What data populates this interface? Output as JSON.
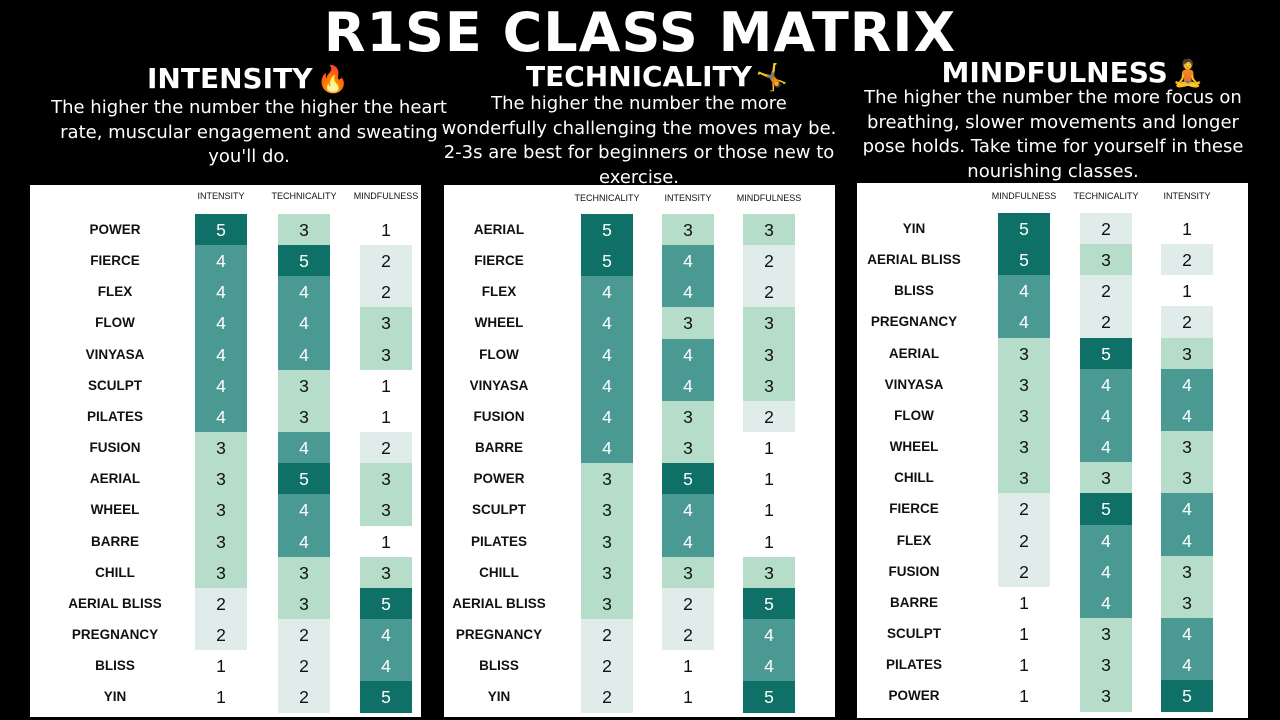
{
  "title": "R1SE CLASS MATRIX",
  "colors": {
    "5": "#0f7068",
    "4": "#4a9a93",
    "3": "#b6ddca",
    "2": "#dfecea",
    "1": "#ffffff"
  },
  "chart_data": [
    {
      "type": "table",
      "title": "INTENSITY",
      "emoji": "🔥",
      "description": "The higher the number the higher the heart rate, muscular engagement and sweating you'll do.",
      "columns": [
        "INTENSITY",
        "TECHNICALITY",
        "MINDFULNESS"
      ],
      "rows": [
        {
          "name": "POWER",
          "values": [
            5,
            3,
            1
          ]
        },
        {
          "name": "FIERCE",
          "values": [
            4,
            5,
            2
          ]
        },
        {
          "name": "FLEX",
          "values": [
            4,
            4,
            2
          ]
        },
        {
          "name": "FLOW",
          "values": [
            4,
            4,
            3
          ]
        },
        {
          "name": "VINYASA",
          "values": [
            4,
            4,
            3
          ]
        },
        {
          "name": "SCULPT",
          "values": [
            4,
            3,
            1
          ]
        },
        {
          "name": "PILATES",
          "values": [
            4,
            3,
            1
          ]
        },
        {
          "name": "FUSION",
          "values": [
            3,
            4,
            2
          ]
        },
        {
          "name": "AERIAL",
          "values": [
            3,
            5,
            3
          ]
        },
        {
          "name": "WHEEL",
          "values": [
            3,
            4,
            3
          ]
        },
        {
          "name": "BARRE",
          "values": [
            3,
            4,
            1
          ]
        },
        {
          "name": "CHILL",
          "values": [
            3,
            3,
            3
          ]
        },
        {
          "name": "AERIAL BLISS",
          "values": [
            2,
            3,
            5
          ]
        },
        {
          "name": "PREGNANCY",
          "values": [
            2,
            2,
            4
          ]
        },
        {
          "name": "BLISS",
          "values": [
            1,
            2,
            4
          ]
        },
        {
          "name": "YIN",
          "values": [
            1,
            2,
            5
          ]
        }
      ]
    },
    {
      "type": "table",
      "title": "TECHNICALITY",
      "emoji": "🤸",
      "description": "The higher the number the more wonderfully challenging the moves may be. 2-3s are best for beginners or those new to exercise.",
      "columns": [
        "TECHNICALITY",
        "INTENSITY",
        "MINDFULNESS"
      ],
      "rows": [
        {
          "name": "AERIAL",
          "values": [
            5,
            3,
            3
          ]
        },
        {
          "name": "FIERCE",
          "values": [
            5,
            4,
            2
          ]
        },
        {
          "name": "FLEX",
          "values": [
            4,
            4,
            2
          ]
        },
        {
          "name": "WHEEL",
          "values": [
            4,
            3,
            3
          ]
        },
        {
          "name": "FLOW",
          "values": [
            4,
            4,
            3
          ]
        },
        {
          "name": "VINYASA",
          "values": [
            4,
            4,
            3
          ]
        },
        {
          "name": "FUSION",
          "values": [
            4,
            3,
            2
          ]
        },
        {
          "name": "BARRE",
          "values": [
            4,
            3,
            1
          ]
        },
        {
          "name": "POWER",
          "values": [
            3,
            5,
            1
          ]
        },
        {
          "name": "SCULPT",
          "values": [
            3,
            4,
            1
          ]
        },
        {
          "name": "PILATES",
          "values": [
            3,
            4,
            1
          ]
        },
        {
          "name": "CHILL",
          "values": [
            3,
            3,
            3
          ]
        },
        {
          "name": "AERIAL BLISS",
          "values": [
            3,
            2,
            5
          ]
        },
        {
          "name": "PREGNANCY",
          "values": [
            2,
            2,
            4
          ]
        },
        {
          "name": "BLISS",
          "values": [
            2,
            1,
            4
          ]
        },
        {
          "name": "YIN",
          "values": [
            2,
            1,
            5
          ]
        }
      ]
    },
    {
      "type": "table",
      "title": "MINDFULNESS",
      "emoji": "🧘",
      "description": "The higher the number the more focus on breathing, slower movements and longer pose holds. Take time for yourself in these nourishing classes.",
      "columns": [
        "MINDFULNESS",
        "TECHNICALITY",
        "INTENSITY"
      ],
      "rows": [
        {
          "name": "YIN",
          "values": [
            5,
            2,
            1
          ]
        },
        {
          "name": "AERIAL BLISS",
          "values": [
            5,
            3,
            2
          ]
        },
        {
          "name": "BLISS",
          "values": [
            4,
            2,
            1
          ]
        },
        {
          "name": "PREGNANCY",
          "values": [
            4,
            2,
            2
          ]
        },
        {
          "name": "AERIAL",
          "values": [
            3,
            5,
            3
          ]
        },
        {
          "name": "VINYASA",
          "values": [
            3,
            4,
            4
          ]
        },
        {
          "name": "FLOW",
          "values": [
            3,
            4,
            4
          ]
        },
        {
          "name": "WHEEL",
          "values": [
            3,
            4,
            3
          ]
        },
        {
          "name": "CHILL",
          "values": [
            3,
            3,
            3
          ]
        },
        {
          "name": "FIERCE",
          "values": [
            2,
            5,
            4
          ]
        },
        {
          "name": "FLEX",
          "values": [
            2,
            4,
            4
          ]
        },
        {
          "name": "FUSION",
          "values": [
            2,
            4,
            3
          ]
        },
        {
          "name": "BARRE",
          "values": [
            1,
            4,
            3
          ]
        },
        {
          "name": "SCULPT",
          "values": [
            1,
            3,
            4
          ]
        },
        {
          "name": "PILATES",
          "values": [
            1,
            3,
            4
          ]
        },
        {
          "name": "POWER",
          "values": [
            1,
            3,
            5
          ]
        }
      ]
    }
  ]
}
